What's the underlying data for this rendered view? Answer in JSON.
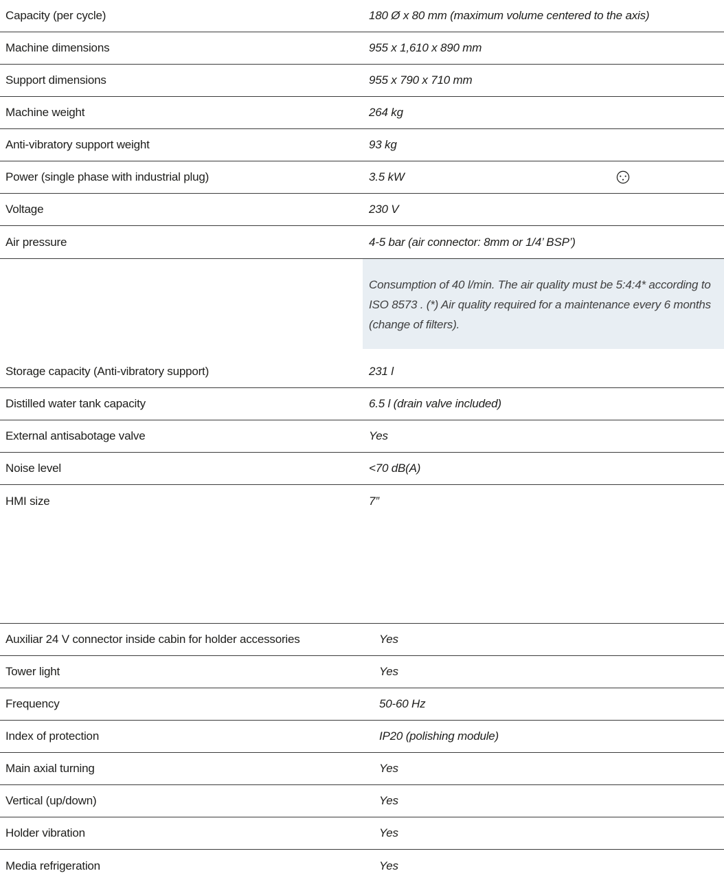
{
  "table1": {
    "rows": [
      {
        "label": "Capacity (per cycle)",
        "value": "180 Ø x 80 mm (maximum volume centered to the axis)"
      },
      {
        "label": "Machine dimensions",
        "value": "955 x 1,610 x 890 mm"
      },
      {
        "label": "Support dimensions",
        "value": "955 x 790 x 710 mm"
      },
      {
        "label": "Machine weight",
        "value": "264 kg"
      },
      {
        "label": "Anti-vibratory support weight",
        "value": "93 kg"
      },
      {
        "label": "Power (single phase with industrial plug)",
        "value": "3.5 kW",
        "icon": "industrial-plug-icon"
      },
      {
        "label": "Voltage",
        "value": "230 V"
      },
      {
        "label": "Air pressure",
        "value": "4-5 bar (air connector: 8mm or 1/4’ BSP’)"
      }
    ],
    "note": "Consumption of 40 l/min. The air quality must be 5:4:4* according to ISO 8573 . (*) Air quality required for a maintenance every 6 months (change of filters).",
    "rows_after_note": [
      {
        "label": "Storage capacity (Anti-vibratory support)",
        "value": "231 l"
      },
      {
        "label": "Distilled water tank capacity",
        "value": "6.5 l (drain valve included)"
      },
      {
        "label": "External antisabotage valve",
        "value": "Yes"
      },
      {
        "label": "Noise level",
        "value": "<70 dB(A)"
      },
      {
        "label": "HMI size",
        "value": "7”"
      }
    ]
  },
  "table2": {
    "rows": [
      {
        "label": "Auxiliar 24 V connector inside cabin for holder accessories",
        "value": "Yes"
      },
      {
        "label": "Tower light",
        "value": "Yes"
      },
      {
        "label": "Frequency",
        "value": "50-60 Hz"
      },
      {
        "label": "Index of protection",
        "value": "IP20 (polishing module)"
      },
      {
        "label": "Main axial turning",
        "value": "Yes"
      },
      {
        "label": "Vertical (up/down)",
        "value": "Yes"
      },
      {
        "label": "Holder vibration",
        "value": "Yes"
      },
      {
        "label": "Media refrigeration",
        "value": "Yes"
      }
    ]
  }
}
